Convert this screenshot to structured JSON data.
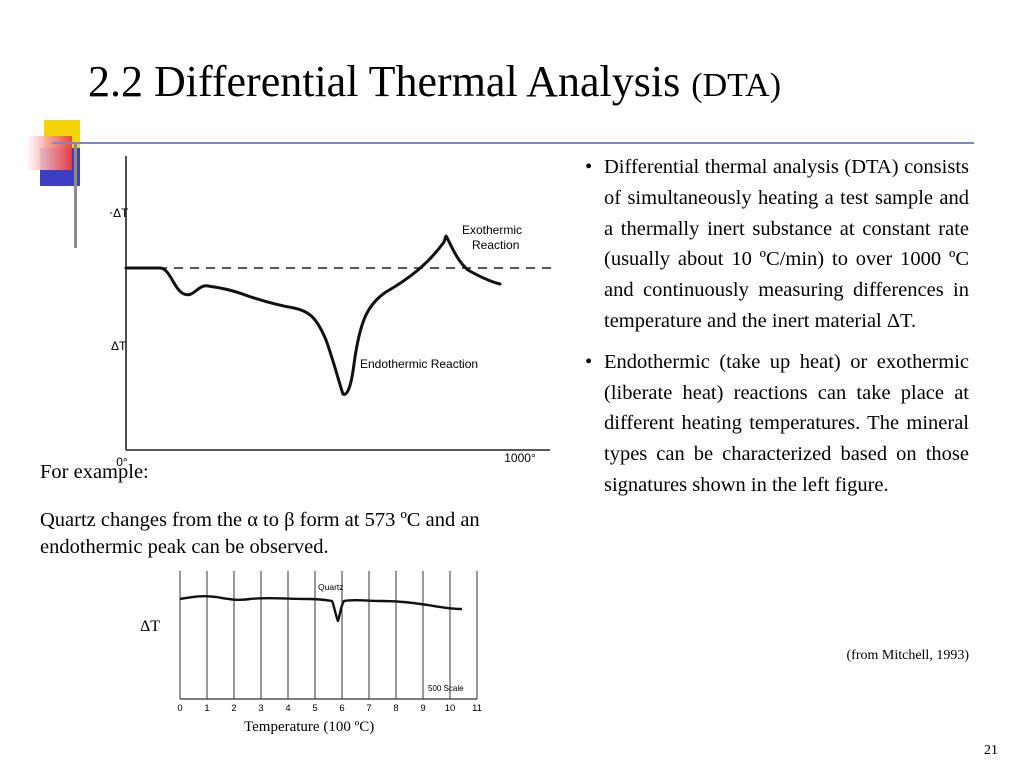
{
  "slide": {
    "title_main": "2.2 Differential Thermal Analysis",
    "title_abbr": "(DTA)",
    "page_number": "21"
  },
  "bullets": [
    {
      "text": "Differential thermal analysis (DTA) consists of simultaneously heating a test sample and a thermally inert substance at constant rate (usually about 10 ºC/min) to over 1000 ºC and continuously measuring differences in temperature and the inert material ΔT."
    },
    {
      "text": "Endothermic (take up heat) or exothermic (liberate heat) reactions can take place at different heating temperatures. The mineral types can be characterized based on those signatures shown in the left figure."
    }
  ],
  "citation": "(from Mitchell, 1993)",
  "example": {
    "intro": "For example:",
    "body": "Quartz changes from the α to β form at 573 ºC and an endothermic peak can be observed."
  },
  "figure1": {
    "y_plus": "+ΔT",
    "y_minus": "−ΔT",
    "x_start": "0°",
    "x_end": "1000°",
    "exo_line1": "Exothermic",
    "exo_line2": "Reaction",
    "endo_label": "Endothermic Reaction"
  },
  "figure2": {
    "peak_label": "Quartz",
    "scale_label": "500 Scale",
    "ticks": [
      "0",
      "1",
      "2",
      "3",
      "4",
      "5",
      "6",
      "7",
      "8",
      "9",
      "10",
      "11"
    ],
    "y_label": "ΔT",
    "x_label": "Temperature (100 ºC)"
  },
  "colors": {
    "rule": "#7f86c9",
    "deco_yellow": "#f6d40b",
    "deco_red": "#ee3b3b",
    "deco_blue": "#3a3fc4",
    "deco_gray": "#8c8c8c"
  }
}
